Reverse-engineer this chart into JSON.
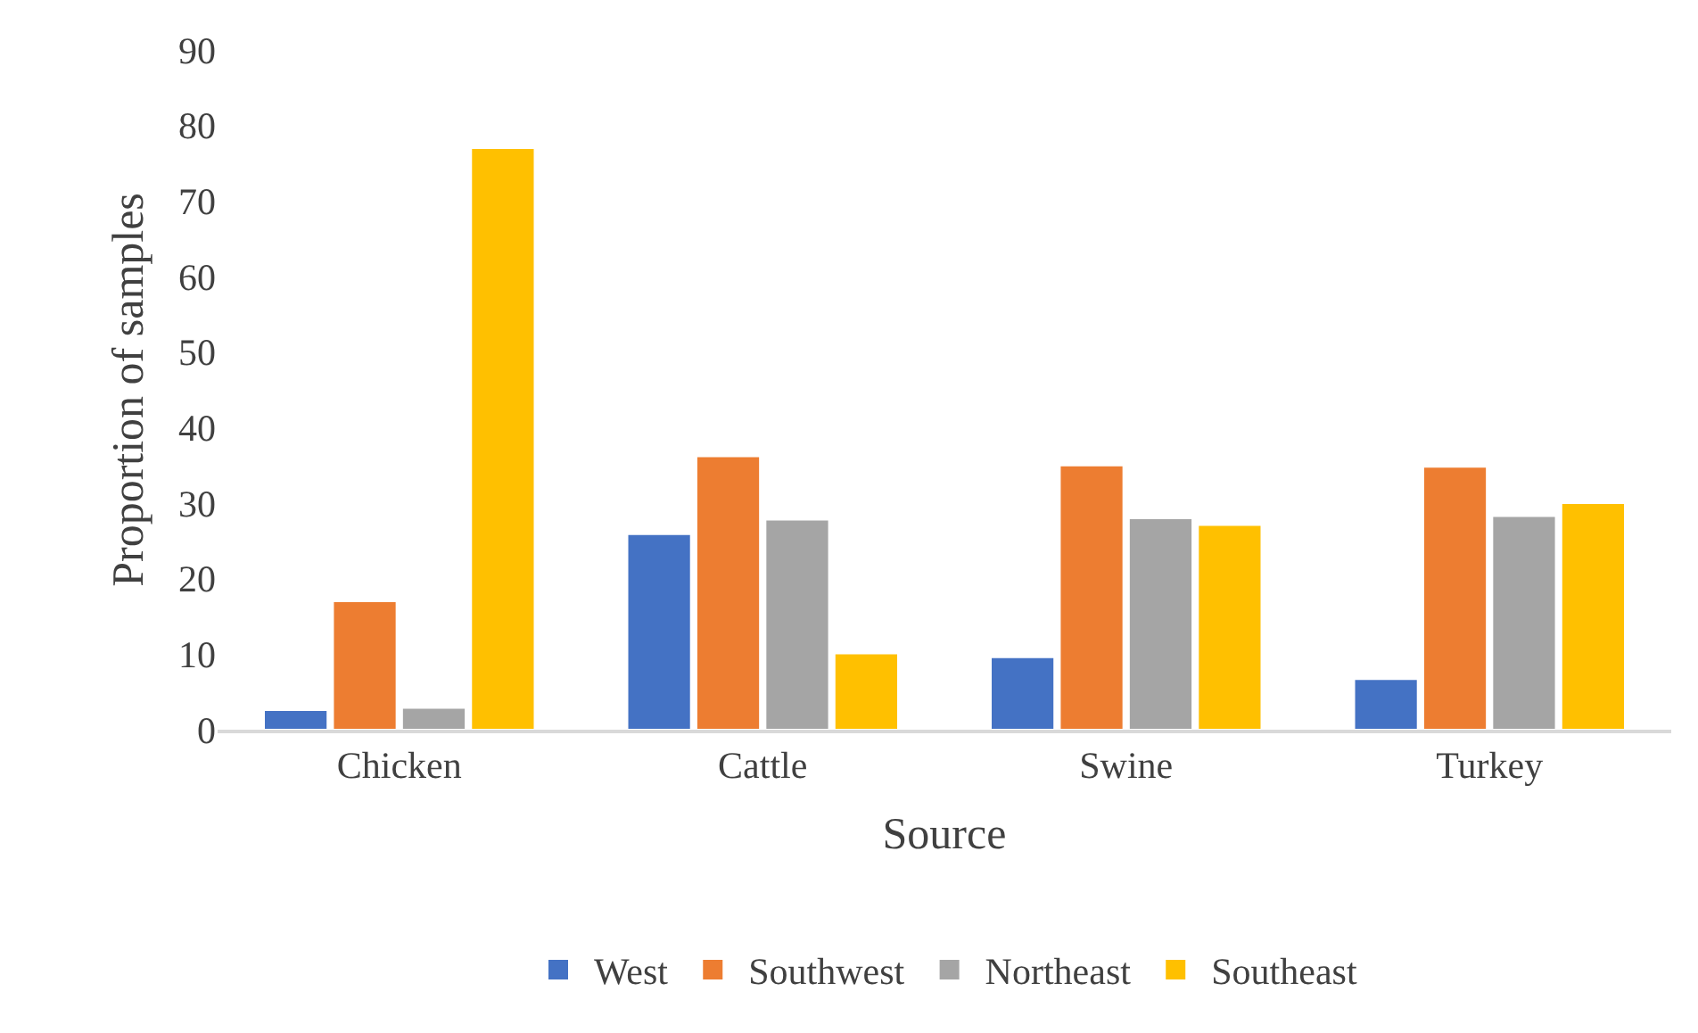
{
  "chart_data": {
    "type": "bar",
    "xlabel": "Source",
    "ylabel": "Proportion of samples",
    "categories": [
      "Chicken",
      "Cattle",
      "Swine",
      "Turkey"
    ],
    "series": [
      {
        "name": "West",
        "color": "#4472c4",
        "values": [
          2.6,
          25.9,
          9.6,
          6.7
        ]
      },
      {
        "name": "Southwest",
        "color": "#ed7d31",
        "values": [
          17,
          36.2,
          35,
          34.8
        ]
      },
      {
        "name": "Northeast",
        "color": "#a5a5a5",
        "values": [
          2.9,
          27.8,
          28,
          28.3
        ]
      },
      {
        "name": "Southeast",
        "color": "#ffc000",
        "values": [
          77,
          10.1,
          27.1,
          30
        ]
      }
    ],
    "ylim": [
      0,
      90
    ],
    "yticks": [
      0,
      10,
      20,
      30,
      40,
      50,
      60,
      70,
      80,
      90
    ],
    "grid": false,
    "legend": "bottom"
  }
}
